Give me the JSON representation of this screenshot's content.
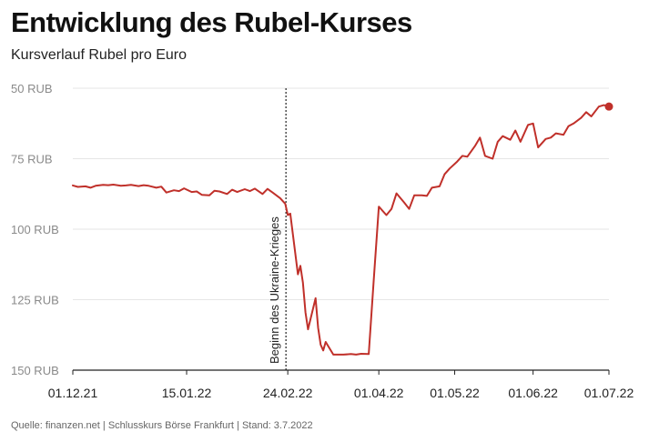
{
  "header": {
    "title": "Entwicklung des Rubel-Kurses",
    "subtitle": "Kursverlauf Rubel pro Euro"
  },
  "footer": {
    "source": "Quelle: finanzen.net | Schlusskurs Börse Frankfurt | Stand: 3.7.2022"
  },
  "chart_data": {
    "type": "line",
    "title": "Entwicklung des Rubel-Kurses",
    "subtitle": "Kursverlauf Rubel pro Euro",
    "xlabel": "",
    "ylabel": "",
    "y_axis_inverted": true,
    "ylim": [
      50,
      150
    ],
    "yticks": [
      50,
      75,
      100,
      125,
      150
    ],
    "ytick_labels": [
      "50 RUB",
      "75 RUB",
      "100 RUB",
      "125 RUB",
      "150 RUB"
    ],
    "xlim": [
      "2021-12-01",
      "2022-07-01"
    ],
    "xtick_labels": [
      "01.12.21",
      "15.01.22",
      "24.02.22",
      "01.04.22",
      "01.05.22",
      "01.06.22",
      "01.07.22"
    ],
    "xtick_dates": [
      "2021-12-01",
      "2022-01-15",
      "2022-02-24",
      "2022-04-01",
      "2022-05-01",
      "2022-06-01",
      "2022-07-01"
    ],
    "grid": true,
    "line_color": "#c0302a",
    "annotation": {
      "date": "2022-02-24",
      "label": "Beginn des Ukraine-Krieges"
    },
    "series": [
      {
        "x": [
          "2021-12-01",
          "2021-12-03",
          "2021-12-06",
          "2021-12-08",
          "2021-12-10",
          "2021-12-13",
          "2021-12-15",
          "2021-12-17",
          "2021-12-20",
          "2021-12-22",
          "2021-12-24",
          "2021-12-27",
          "2021-12-29",
          "2021-12-31",
          "2022-01-03",
          "2022-01-05",
          "2022-01-07",
          "2022-01-10",
          "2022-01-12",
          "2022-01-14",
          "2022-01-17",
          "2022-01-19",
          "2022-01-21",
          "2022-01-24",
          "2022-01-26",
          "2022-01-28",
          "2022-01-31",
          "2022-02-02",
          "2022-02-04",
          "2022-02-07",
          "2022-02-09",
          "2022-02-11",
          "2022-02-14",
          "2022-02-16",
          "2022-02-18",
          "2022-02-21",
          "2022-02-23",
          "2022-02-24",
          "2022-02-25",
          "2022-02-28",
          "2022-03-01",
          "2022-03-02",
          "2022-03-03",
          "2022-03-04",
          "2022-03-07",
          "2022-03-08",
          "2022-03-09",
          "2022-03-10",
          "2022-03-11",
          "2022-03-14",
          "2022-03-16",
          "2022-03-18",
          "2022-03-21",
          "2022-03-23",
          "2022-03-25",
          "2022-03-28",
          "2022-03-30",
          "2022-04-01",
          "2022-04-04",
          "2022-04-06",
          "2022-04-08",
          "2022-04-11",
          "2022-04-13",
          "2022-04-15",
          "2022-04-18",
          "2022-04-20",
          "2022-04-22",
          "2022-04-25",
          "2022-04-27",
          "2022-04-29",
          "2022-05-02",
          "2022-05-04",
          "2022-05-06",
          "2022-05-09",
          "2022-05-11",
          "2022-05-13",
          "2022-05-16",
          "2022-05-18",
          "2022-05-20",
          "2022-05-23",
          "2022-05-25",
          "2022-05-27",
          "2022-05-30",
          "2022-06-01",
          "2022-06-03",
          "2022-06-06",
          "2022-06-08",
          "2022-06-10",
          "2022-06-13",
          "2022-06-15",
          "2022-06-17",
          "2022-06-20",
          "2022-06-22",
          "2022-06-24",
          "2022-06-27",
          "2022-06-29",
          "2022-07-01"
        ],
        "y": [
          84.5,
          85.0,
          84.8,
          85.3,
          84.6,
          84.3,
          84.4,
          84.2,
          84.6,
          84.5,
          84.3,
          84.7,
          84.4,
          84.6,
          85.3,
          84.9,
          87.0,
          86.2,
          86.5,
          85.5,
          86.8,
          86.6,
          87.8,
          88.0,
          86.4,
          86.6,
          87.5,
          86.0,
          86.8,
          85.8,
          86.5,
          85.6,
          87.5,
          85.7,
          87.0,
          89.0,
          91.0,
          95.0,
          94.5,
          116.0,
          113.0,
          119.0,
          129.5,
          135.5,
          124.5,
          135.0,
          141.0,
          143.0,
          140.0,
          144.5,
          144.5,
          144.5,
          144.3,
          144.5,
          144.2,
          144.3,
          118.0,
          92.0,
          95.0,
          92.8,
          87.3,
          90.5,
          92.8,
          88.0,
          88.0,
          88.2,
          85.3,
          84.8,
          80.5,
          78.5,
          76.0,
          74.0,
          74.3,
          70.5,
          67.5,
          74.0,
          75.0,
          69.0,
          67.0,
          68.3,
          65.0,
          69.0,
          63.0,
          62.5,
          71.0,
          68.0,
          67.5,
          66.0,
          66.5,
          63.5,
          62.5,
          60.5,
          58.5,
          60.0,
          56.5,
          56.0,
          56.5
        ]
      }
    ]
  }
}
